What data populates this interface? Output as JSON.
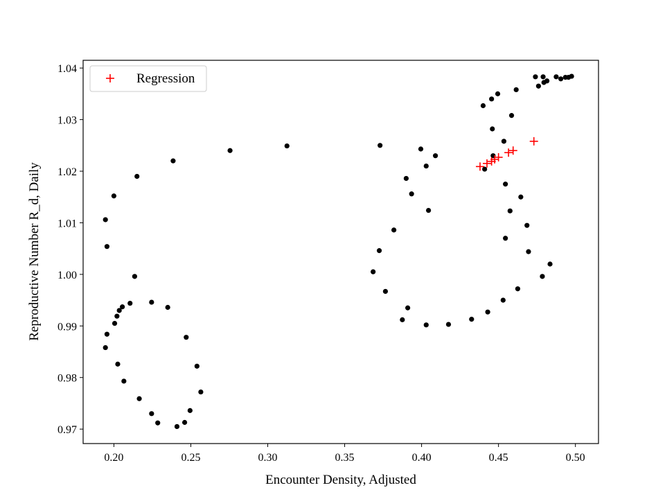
{
  "chart_data": {
    "type": "scatter",
    "xlabel": "Encounter Density, Adjusted",
    "ylabel": "Reproductive Number R_d, Daily",
    "xlim": [
      0.18,
      0.515
    ],
    "ylim": [
      0.9672,
      1.0415
    ],
    "xticks": [
      0.2,
      0.25,
      0.3,
      0.35,
      0.4,
      0.45,
      0.5
    ],
    "xtick_labels": [
      "0.20",
      "0.25",
      "0.30",
      "0.35",
      "0.40",
      "0.45",
      "0.50"
    ],
    "yticks": [
      0.97,
      0.98,
      0.99,
      1.0,
      1.01,
      1.02,
      1.03,
      1.04
    ],
    "ytick_labels": [
      "0.97",
      "0.98",
      "0.99",
      "1.00",
      "1.01",
      "1.02",
      "1.03",
      "1.04"
    ],
    "grid": false,
    "legend_position": "top-left",
    "series": [
      {
        "marker": "dot",
        "color": "#000000",
        "points": [
          [
            0.241,
            0.9705
          ],
          [
            0.246,
            0.9713
          ],
          [
            0.2495,
            0.9736
          ],
          [
            0.2565,
            0.9772
          ],
          [
            0.254,
            0.9822
          ],
          [
            0.247,
            0.9878
          ],
          [
            0.235,
            0.9936
          ],
          [
            0.2245,
            0.9946
          ],
          [
            0.2105,
            0.9944
          ],
          [
            0.2055,
            0.9937
          ],
          [
            0.2035,
            0.993
          ],
          [
            0.202,
            0.9919
          ],
          [
            0.2005,
            0.9905
          ],
          [
            0.1955,
            0.9884
          ],
          [
            0.1945,
            0.9858
          ],
          [
            0.2025,
            0.9826
          ],
          [
            0.2065,
            0.9793
          ],
          [
            0.2165,
            0.9759
          ],
          [
            0.2245,
            0.973
          ],
          [
            0.2285,
            0.9712
          ],
          [
            0.2135,
            0.9996
          ],
          [
            0.1955,
            1.0054
          ],
          [
            0.1945,
            1.0106
          ],
          [
            0.2,
            1.0152
          ],
          [
            0.215,
            1.019
          ],
          [
            0.2385,
            1.022
          ],
          [
            0.2755,
            1.024
          ],
          [
            0.3125,
            1.0249
          ],
          [
            0.373,
            1.025
          ],
          [
            0.3995,
            1.0243
          ],
          [
            0.409,
            1.023
          ],
          [
            0.403,
            1.021
          ],
          [
            0.39,
            1.0186
          ],
          [
            0.3935,
            1.0156
          ],
          [
            0.4045,
            1.0124
          ],
          [
            0.382,
            1.0086
          ],
          [
            0.3725,
            1.0046
          ],
          [
            0.3685,
            1.0005
          ],
          [
            0.3765,
            0.9967
          ],
          [
            0.391,
            0.9935
          ],
          [
            0.3875,
            0.9912
          ],
          [
            0.403,
            0.9902
          ],
          [
            0.4175,
            0.9903
          ],
          [
            0.4325,
            0.9913
          ],
          [
            0.443,
            0.9927
          ],
          [
            0.453,
            0.995
          ],
          [
            0.4625,
            0.9972
          ],
          [
            0.4785,
            0.9996
          ],
          [
            0.4835,
            1.002
          ],
          [
            0.4695,
            1.0044
          ],
          [
            0.4685,
            1.0095
          ],
          [
            0.4545,
            1.007
          ],
          [
            0.4575,
            1.0123
          ],
          [
            0.4645,
            1.015
          ],
          [
            0.4545,
            1.0175
          ],
          [
            0.441,
            1.0204
          ],
          [
            0.4465,
            1.023
          ],
          [
            0.4535,
            1.0258
          ],
          [
            0.446,
            1.0282
          ],
          [
            0.4585,
            1.0308
          ],
          [
            0.44,
            1.0327
          ],
          [
            0.4455,
            1.034
          ],
          [
            0.4495,
            1.035
          ],
          [
            0.4615,
            1.0358
          ],
          [
            0.476,
            1.0365
          ],
          [
            0.4795,
            1.0372
          ],
          [
            0.4815,
            1.0375
          ],
          [
            0.474,
            1.0383
          ],
          [
            0.479,
            1.0383
          ],
          [
            0.4875,
            1.0383
          ],
          [
            0.4905,
            1.0379
          ],
          [
            0.4935,
            1.0382
          ],
          [
            0.4955,
            1.0382
          ],
          [
            0.4975,
            1.0384
          ]
        ]
      },
      {
        "name": "Regression",
        "marker": "plus",
        "color": "#ff0000",
        "points": [
          [
            0.438,
            1.0209
          ],
          [
            0.4425,
            1.0215
          ],
          [
            0.4455,
            1.0219
          ],
          [
            0.4475,
            1.0223
          ],
          [
            0.45,
            1.0227
          ],
          [
            0.4565,
            1.0236
          ],
          [
            0.4595,
            1.024
          ],
          [
            0.473,
            1.0258
          ]
        ]
      }
    ]
  }
}
